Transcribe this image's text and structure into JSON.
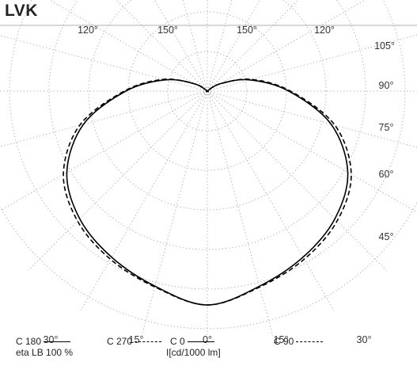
{
  "title": "LVK",
  "chart_data": {
    "type": "polar",
    "angle_labels_top": [
      "120°",
      "150°",
      "150°",
      "120°"
    ],
    "angle_labels_right": [
      "105°",
      "90°",
      "75°",
      "60°",
      "45°"
    ],
    "angle_labels_bottom": [
      "30°",
      "15°",
      "0°",
      "15°",
      "30°"
    ],
    "legend": {
      "c180": "C 180",
      "eta": "eta LB 100 %",
      "c270": "C 270",
      "c0": "C 0",
      "unit": "I[cd/1000 lm]",
      "c90": "C 90"
    },
    "series": [
      {
        "name": "C 0 / C 180",
        "style": "solid",
        "angles_deg": [
          0,
          15,
          30,
          45,
          60,
          75,
          90,
          105,
          120,
          135,
          150,
          165,
          180
        ],
        "values": [
          270,
          255,
          242,
          228,
          205,
          162,
          103,
          55,
          18,
          0,
          0,
          0,
          0
        ]
      },
      {
        "name": "C 90 / C 270",
        "style": "dashed",
        "angles_deg": [
          0,
          15,
          30,
          45,
          60,
          75,
          90,
          105,
          120,
          135,
          150,
          165,
          180
        ],
        "values": [
          270,
          256,
          245,
          232,
          210,
          167,
          105,
          57,
          18,
          0,
          0,
          0,
          0
        ]
      }
    ],
    "grid": true
  }
}
